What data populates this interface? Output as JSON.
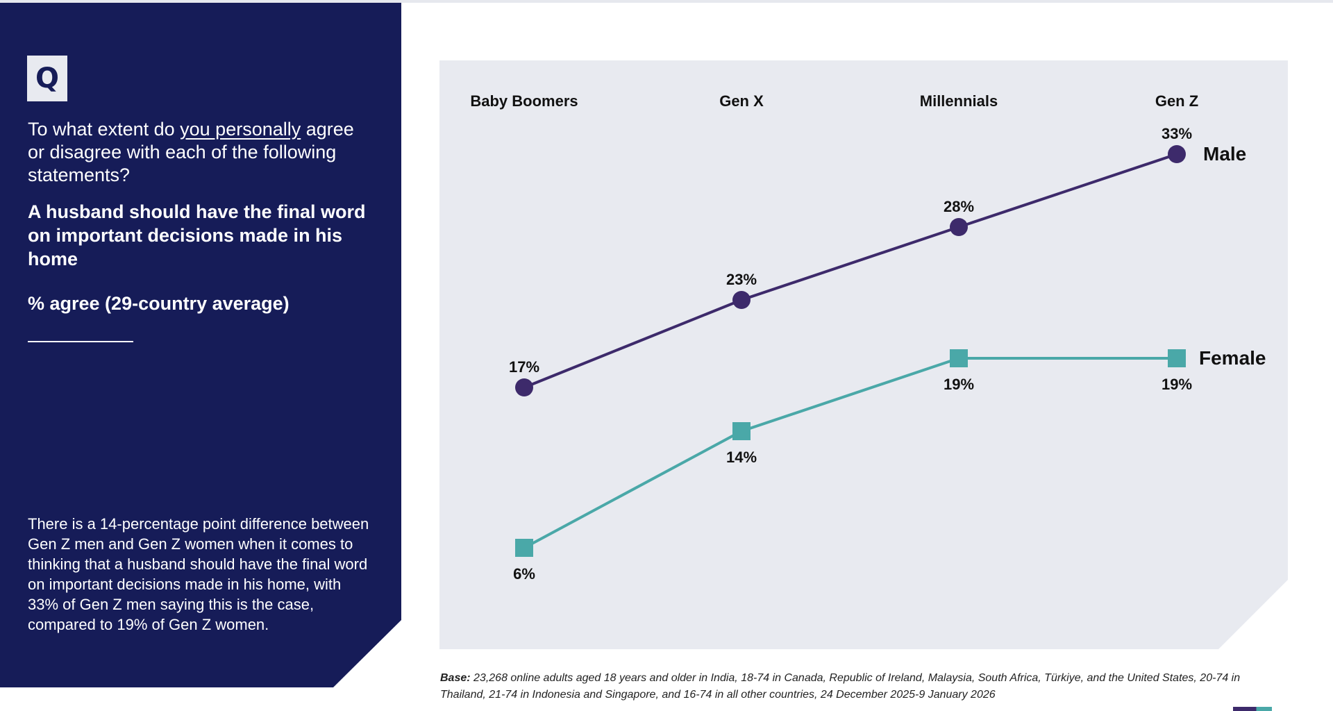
{
  "panel": {
    "q_icon": "Q",
    "question_pre": "To what extent do ",
    "question_underlined": "you personally",
    "question_post": " agree or disagree with each of the following statements?",
    "statement": "A husband should have the final word on important decisions made in his home",
    "measure": "% agree (29-country average)",
    "insight": "There is a 14-percentage point difference between Gen Z men and Gen Z women when it comes to thinking that a husband should have the final word on important decisions made in his home, with 33% of Gen Z men saying this is the case, compared to 19% of Gen Z women."
  },
  "chart_data": {
    "type": "line",
    "categories": [
      "Baby Boomers",
      "Gen X",
      "Millennials",
      "Gen Z"
    ],
    "series": [
      {
        "name": "Male",
        "values": [
          17,
          23,
          28,
          33
        ],
        "labels": [
          "17%",
          "23%",
          "28%",
          "33%"
        ],
        "color": "#3d2a6b",
        "marker": "circle"
      },
      {
        "name": "Female",
        "values": [
          6,
          14,
          19,
          19
        ],
        "labels": [
          "6%",
          "14%",
          "19%",
          "19%"
        ],
        "color": "#4aa8a8",
        "marker": "square"
      }
    ],
    "ylabel": "% agree",
    "grid": false
  },
  "footer": {
    "base_label": "Base:",
    "base_text": " 23,268 online adults aged 18 years and older in India, 18-74 in Canada, Republic of Ireland, Malaysia, South Africa, Türkiye, and the United States, 20-74 in Thailand, 21-74 in Indonesia and Singapore, and 16-74 in all other countries, 24 December 2025-9 January 2026"
  }
}
